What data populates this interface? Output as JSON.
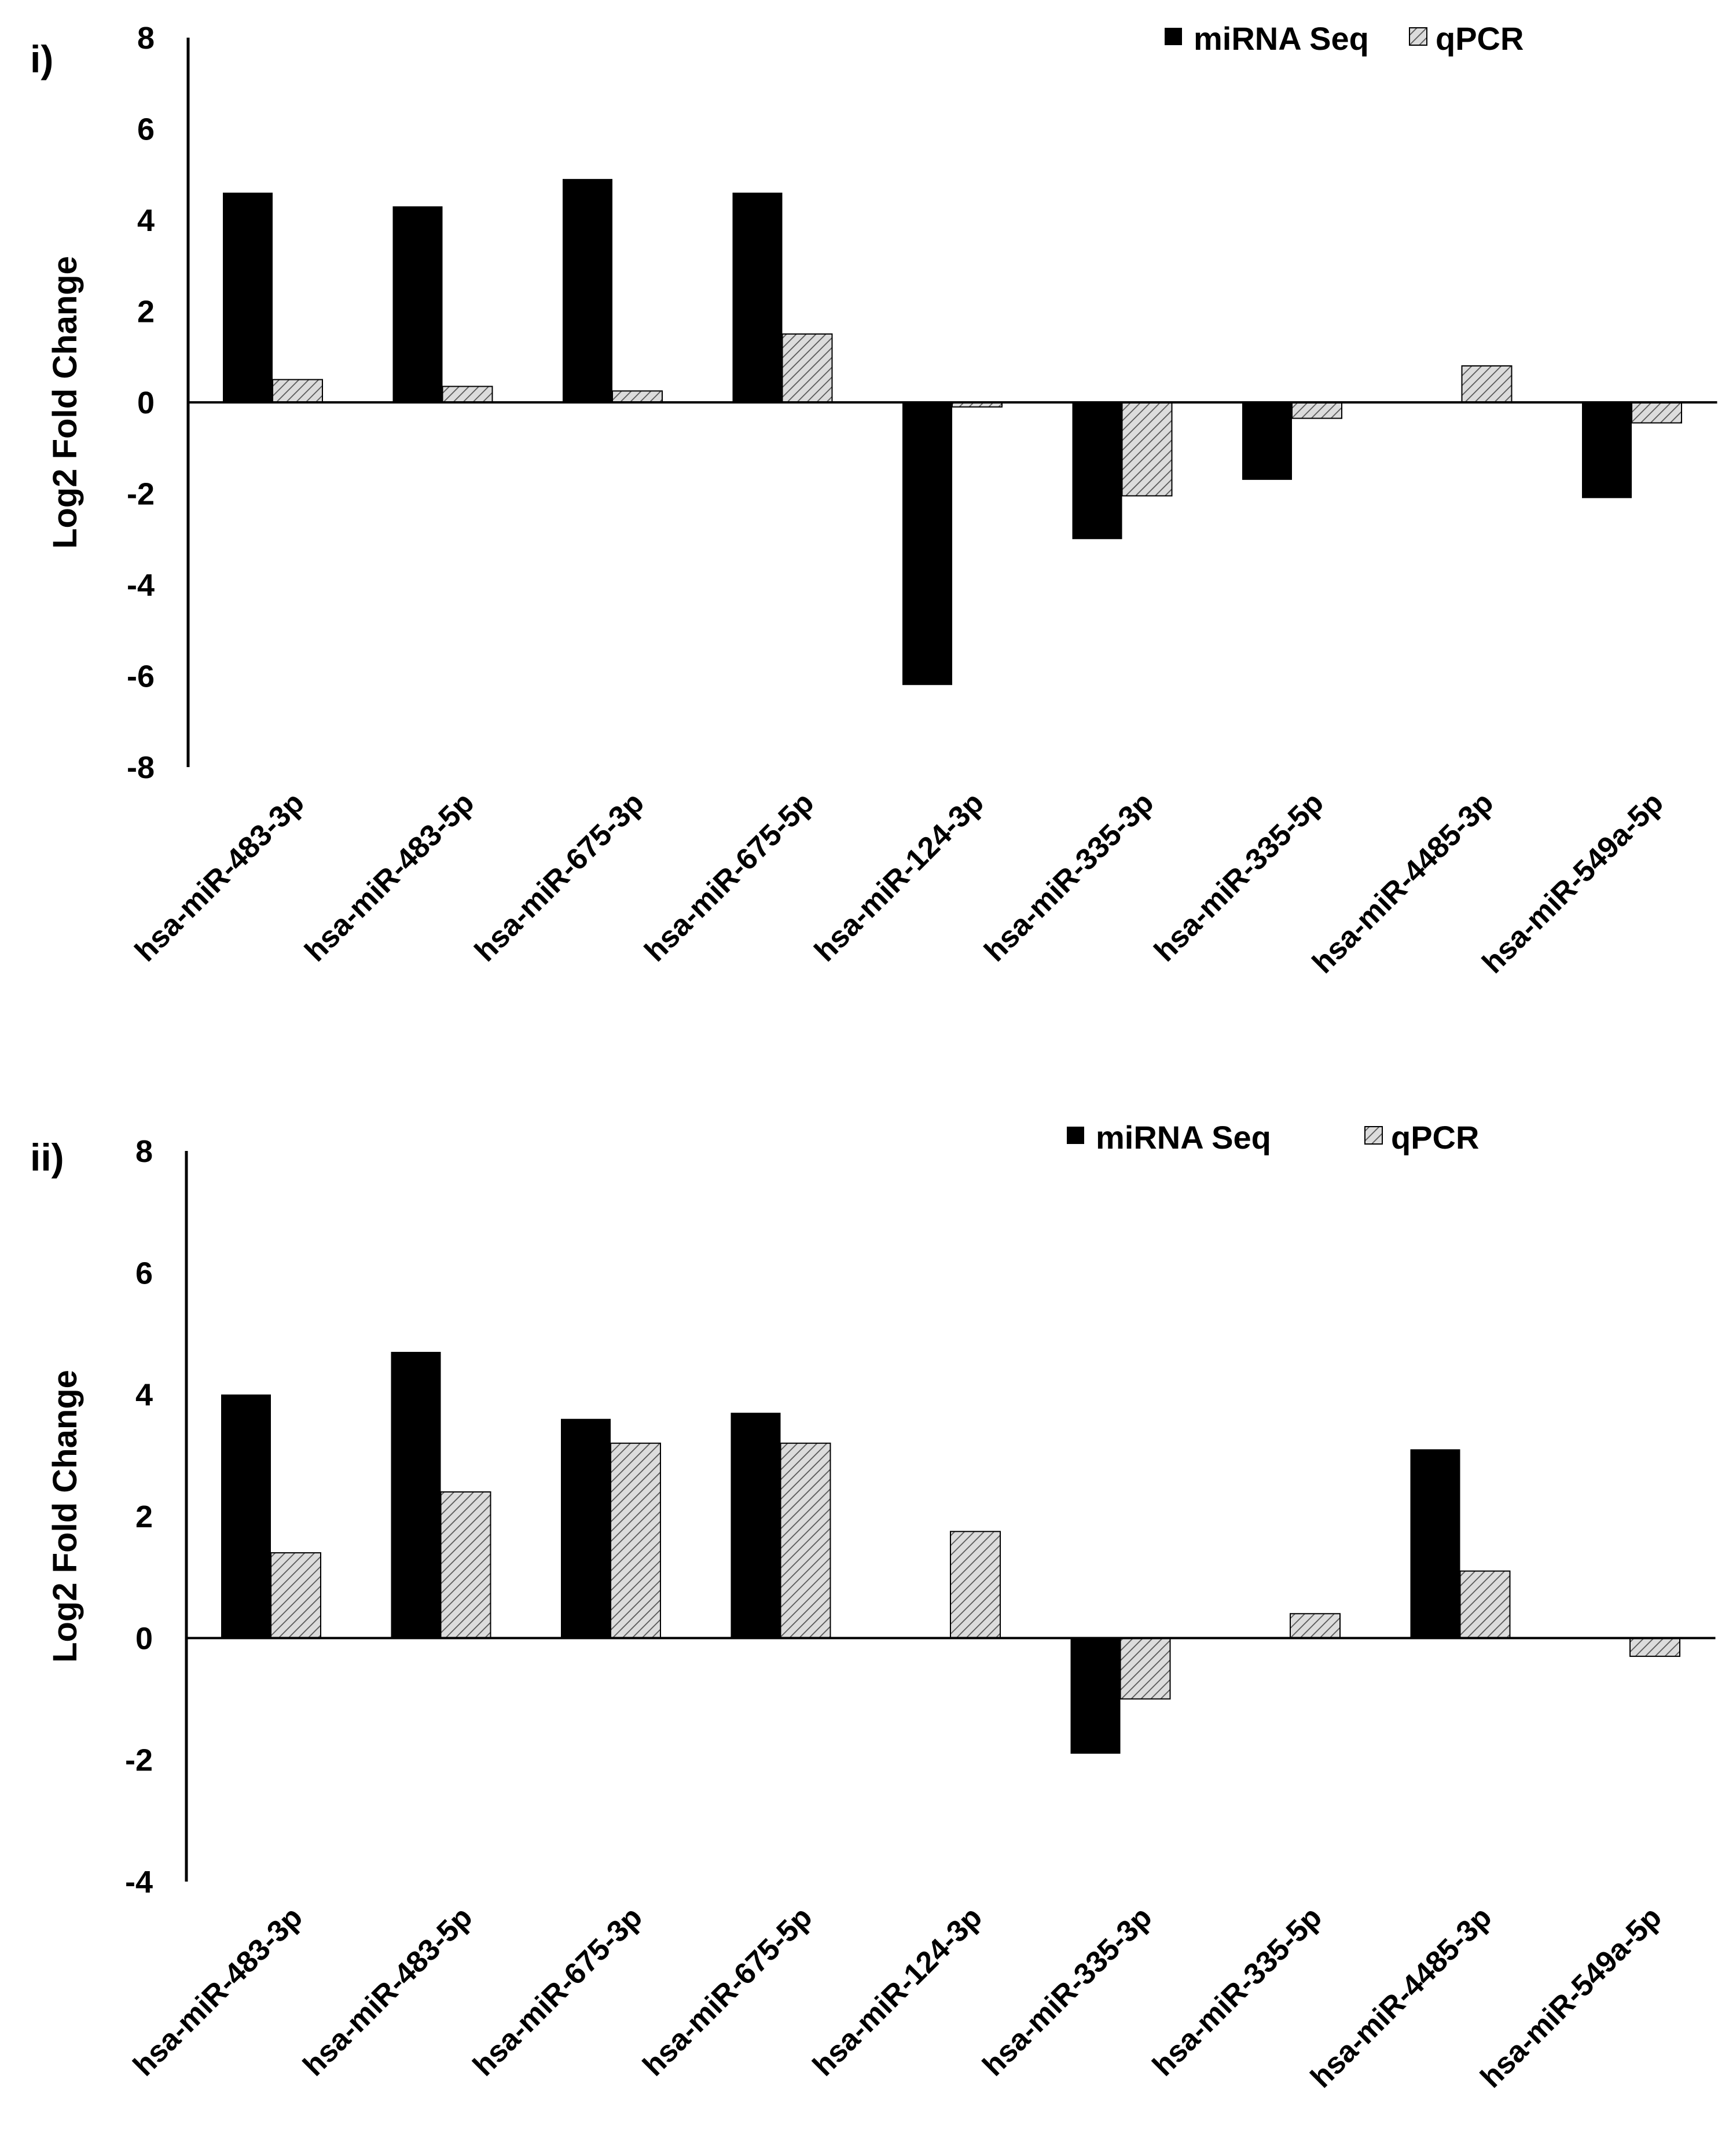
{
  "colors": {
    "seq_fill": "#000000",
    "qpcr_fill": "#dcdcdc",
    "hatch": "#555555",
    "axis": "#000000"
  },
  "chart_data": [
    {
      "panel_label": "i)",
      "type": "bar",
      "ylabel": "Log2 Fold Change",
      "xlabel": "",
      "ylim": [
        -8,
        8
      ],
      "yticks": [
        8,
        6,
        4,
        2,
        0,
        -2,
        -4,
        -6,
        -8
      ],
      "legend": {
        "placement": "top-right",
        "seq_label": "miRNA Seq",
        "qpcr_label": "qPCR"
      },
      "categories": [
        "hsa-miR-483-3p",
        "hsa-miR-483-5p",
        "hsa-miR-675-3p",
        "hsa-miR-675-5p",
        "hsa-miR-124-3p",
        "hsa-miR-335-3p",
        "hsa-miR-335-5p",
        "hsa-miR-4485-3p",
        "hsa-miR-549a-5p"
      ],
      "series": [
        {
          "name": "miRNA Seq",
          "values": [
            4.6,
            4.3,
            4.9,
            4.6,
            -6.2,
            -3.0,
            -1.7,
            0,
            -2.1
          ]
        },
        {
          "name": "qPCR",
          "values": [
            0.5,
            0.35,
            0.25,
            1.5,
            -0.1,
            -2.05,
            -0.35,
            0.8,
            -0.45
          ]
        }
      ]
    },
    {
      "panel_label": "ii)",
      "type": "bar",
      "ylabel": "Log2 Fold Change",
      "xlabel": "",
      "ylim": [
        -4,
        8
      ],
      "yticks": [
        8,
        6,
        4,
        2,
        0,
        -2,
        -4
      ],
      "legend": {
        "placement": "top-right",
        "seq_label": "miRNA Seq",
        "qpcr_label": "qPCR"
      },
      "categories": [
        "hsa-miR-483-3p",
        "hsa-miR-483-5p",
        "hsa-miR-675-3p",
        "hsa-miR-675-5p",
        "hsa-miR-124-3p",
        "hsa-miR-335-3p",
        "hsa-miR-335-5p",
        "hsa-miR-4485-3p",
        "hsa-miR-549a-5p"
      ],
      "series": [
        {
          "name": "miRNA Seq",
          "values": [
            4.0,
            4.7,
            3.6,
            3.7,
            0,
            -1.9,
            0,
            3.1,
            0
          ]
        },
        {
          "name": "qPCR",
          "values": [
            1.4,
            2.4,
            3.2,
            3.2,
            1.75,
            -1.0,
            0.4,
            1.1,
            -0.3
          ]
        }
      ]
    }
  ]
}
